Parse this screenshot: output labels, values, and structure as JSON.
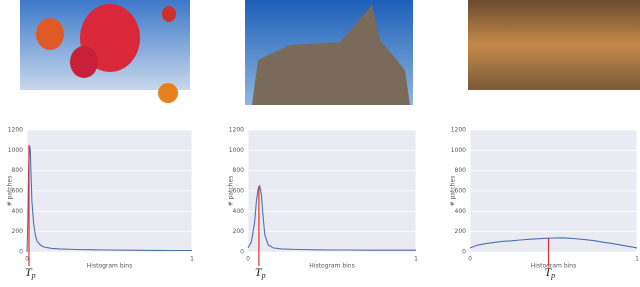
{
  "chart_data": [
    {
      "type": "line",
      "x": [
        0,
        0.005,
        0.01,
        0.015,
        0.02,
        0.025,
        0.03,
        0.04,
        0.05,
        0.06,
        0.08,
        0.1,
        0.15,
        0.2,
        0.3,
        0.4,
        0.5,
        0.6,
        0.7,
        0.8,
        0.9,
        1.0
      ],
      "values": [
        0,
        300,
        800,
        1050,
        1000,
        750,
        500,
        280,
        170,
        110,
        70,
        50,
        35,
        30,
        25,
        22,
        20,
        18,
        17,
        16,
        15,
        15
      ],
      "color": "#4c72b0",
      "xlim": [
        0,
        1
      ],
      "ylim": [
        0,
        1200
      ],
      "xticks": [
        0,
        1
      ],
      "yticks": [
        0,
        200,
        400,
        600,
        800,
        1000,
        1200
      ],
      "xlabel": "Histogram bins",
      "ylabel": "# patches",
      "grid": true,
      "annotation": {
        "text": "T",
        "subscript": "p",
        "x": 0.012,
        "color": "#e0302f"
      }
    },
    {
      "type": "line",
      "x": [
        0,
        0.02,
        0.04,
        0.05,
        0.06,
        0.07,
        0.08,
        0.09,
        0.1,
        0.12,
        0.15,
        0.2,
        0.3,
        0.4,
        0.5,
        0.6,
        0.7,
        0.8,
        0.9,
        1.0
      ],
      "values": [
        40,
        100,
        300,
        500,
        620,
        650,
        560,
        350,
        170,
        70,
        40,
        30,
        25,
        22,
        20,
        20,
        18,
        18,
        18,
        18
      ],
      "color": "#4c72b0",
      "xlim": [
        0,
        1
      ],
      "ylim": [
        0,
        1200
      ],
      "xticks": [
        0,
        1
      ],
      "yticks": [
        0,
        200,
        400,
        600,
        800,
        1000,
        1200
      ],
      "xlabel": "Histogram bins",
      "ylabel": "# patches",
      "grid": true,
      "annotation": {
        "text": "T",
        "subscript": "p",
        "x": 0.065,
        "color": "#e0302f"
      }
    },
    {
      "type": "line",
      "x": [
        0,
        0.05,
        0.1,
        0.15,
        0.2,
        0.25,
        0.3,
        0.35,
        0.4,
        0.45,
        0.5,
        0.55,
        0.6,
        0.65,
        0.7,
        0.75,
        0.8,
        0.85,
        0.9,
        0.95,
        1.0
      ],
      "values": [
        40,
        70,
        85,
        95,
        105,
        110,
        118,
        125,
        130,
        135,
        138,
        140,
        135,
        128,
        120,
        110,
        95,
        85,
        70,
        55,
        40
      ],
      "color": "#4c72b0",
      "xlim": [
        0,
        1
      ],
      "ylim": [
        0,
        1200
      ],
      "xticks": [
        0,
        1
      ],
      "yticks": [
        0,
        200,
        400,
        600,
        800,
        1000,
        1200
      ],
      "xlabel": "Histogram bins",
      "ylabel": "# patches",
      "grid": true,
      "annotation": {
        "text": "T",
        "subscript": "p",
        "x": 0.47,
        "color": "#e0302f"
      }
    }
  ]
}
